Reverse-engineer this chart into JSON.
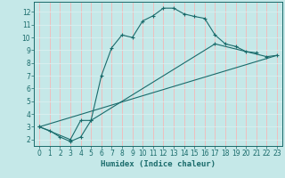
{
  "xlabel": "Humidex (Indice chaleur)",
  "xlim": [
    -0.5,
    23.5
  ],
  "ylim": [
    1.5,
    12.8
  ],
  "xticks": [
    0,
    1,
    2,
    3,
    4,
    5,
    6,
    7,
    8,
    9,
    10,
    11,
    12,
    13,
    14,
    15,
    16,
    17,
    18,
    19,
    20,
    21,
    22,
    23
  ],
  "yticks": [
    2,
    3,
    4,
    5,
    6,
    7,
    8,
    9,
    10,
    11,
    12
  ],
  "bg_color": "#c5e8e8",
  "line_color": "#1a6b6b",
  "grid_color_v": "#f5b8b8",
  "grid_color_h": "#daf0f0",
  "line1_x": [
    0,
    1,
    2,
    3,
    4,
    5,
    6,
    7,
    8,
    9,
    10,
    11,
    12,
    13,
    14,
    15,
    16,
    17,
    18,
    19,
    20,
    21
  ],
  "line1_y": [
    3.0,
    2.7,
    2.2,
    1.85,
    2.2,
    3.5,
    7.0,
    9.2,
    10.2,
    10.0,
    11.3,
    11.7,
    12.3,
    12.3,
    11.85,
    11.65,
    11.5,
    10.2,
    9.5,
    9.3,
    8.9,
    8.8
  ],
  "line2_x": [
    0,
    3,
    4,
    5,
    17,
    22,
    23
  ],
  "line2_y": [
    3.0,
    2.0,
    3.5,
    3.5,
    9.5,
    8.5,
    8.6
  ],
  "line3_x": [
    0,
    23
  ],
  "line3_y": [
    3.0,
    8.6
  ]
}
